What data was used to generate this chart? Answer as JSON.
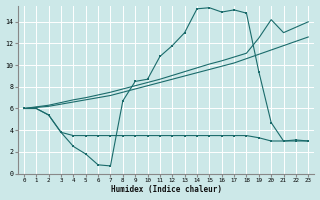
{
  "xlabel": "Humidex (Indice chaleur)",
  "bg_color": "#cce8e8",
  "grid_color": "#ffffff",
  "line_color": "#1a6b6b",
  "xlim": [
    -0.5,
    23.5
  ],
  "ylim": [
    0,
    15.5
  ],
  "xticks": [
    0,
    1,
    2,
    3,
    4,
    5,
    6,
    7,
    8,
    9,
    10,
    11,
    12,
    13,
    14,
    15,
    16,
    17,
    18,
    19,
    20,
    21,
    22,
    23
  ],
  "yticks": [
    0,
    2,
    4,
    6,
    8,
    10,
    12,
    14
  ],
  "jagged_x": [
    0,
    1,
    2,
    3,
    4,
    5,
    6,
    7,
    8,
    9,
    10,
    11,
    12,
    13,
    14,
    15,
    16,
    17,
    18,
    19,
    20,
    21,
    22,
    23
  ],
  "jagged_y": [
    6.0,
    6.0,
    5.4,
    3.8,
    2.5,
    1.8,
    0.8,
    0.7,
    6.7,
    8.5,
    8.7,
    10.8,
    11.8,
    13.0,
    15.2,
    15.3,
    14.9,
    15.1,
    14.8,
    9.4,
    4.7,
    3.0,
    3.1,
    3.0
  ],
  "flat_x": [
    0,
    1,
    2,
    3,
    4,
    5,
    6,
    7,
    8,
    9,
    10,
    11,
    12,
    13,
    14,
    15,
    16,
    17,
    18,
    19,
    20,
    21,
    22,
    23
  ],
  "flat_y": [
    6.0,
    6.0,
    5.4,
    3.8,
    3.5,
    3.5,
    3.5,
    3.5,
    3.5,
    3.5,
    3.5,
    3.5,
    3.5,
    3.5,
    3.5,
    3.5,
    3.5,
    3.5,
    3.5,
    3.3,
    3.0,
    3.0,
    3.0,
    3.0
  ],
  "diag1_x": [
    0,
    1,
    2,
    3,
    4,
    5,
    6,
    7,
    8,
    9,
    10,
    11,
    12,
    13,
    14,
    15,
    16,
    17,
    18,
    19,
    20,
    21,
    22,
    23
  ],
  "diag1_y": [
    6.0,
    6.1,
    6.2,
    6.4,
    6.6,
    6.8,
    7.0,
    7.2,
    7.5,
    7.8,
    8.1,
    8.4,
    8.7,
    9.0,
    9.3,
    9.6,
    9.9,
    10.2,
    10.6,
    11.0,
    11.4,
    11.8,
    12.2,
    12.6
  ],
  "diag2_x": [
    0,
    1,
    2,
    3,
    4,
    5,
    6,
    7,
    8,
    9,
    10,
    11,
    12,
    13,
    14,
    15,
    16,
    17,
    18,
    19,
    20,
    21,
    22,
    23
  ],
  "diag2_y": [
    6.0,
    6.15,
    6.3,
    6.55,
    6.8,
    7.0,
    7.25,
    7.5,
    7.8,
    8.1,
    8.4,
    8.7,
    9.05,
    9.4,
    9.75,
    10.1,
    10.4,
    10.75,
    11.1,
    12.5,
    14.2,
    13.0,
    13.5,
    14.0
  ]
}
